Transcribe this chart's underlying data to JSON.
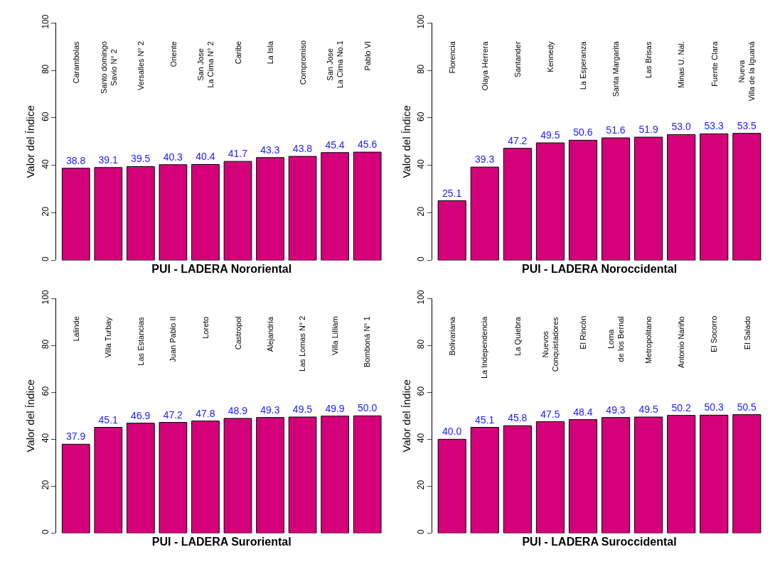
{
  "chart_data": [
    {
      "type": "bar",
      "xlabel": "PUI - LADERA Nororiental",
      "ylabel": "Valor del Índice",
      "categories": [
        "Carambolas",
        "Santo domingo\nSavio N° 2",
        "Versalles N° 2",
        "Oriente",
        "San Jose\nLa Cima N° 2",
        "Caribe",
        "La Isla",
        "Compromiso",
        "San Jose\nLa Cima No.1",
        "Pablo VI"
      ],
      "values": [
        38.8,
        39.1,
        39.5,
        40.3,
        40.4,
        41.7,
        43.3,
        43.8,
        45.4,
        45.6
      ],
      "value_labels": [
        "38.8",
        "39.1",
        "39.5",
        "40.3",
        "40.4",
        "41.7",
        "43.3",
        "43.8",
        "45.4",
        "45.6"
      ],
      "color": "#d4007a",
      "ylim": [
        0,
        100
      ],
      "yticks": [
        0,
        20,
        40,
        60,
        80,
        100
      ]
    },
    {
      "type": "bar",
      "xlabel": "PUI - LADERA Noroccidental",
      "ylabel": "Valor del Índice",
      "categories": [
        "Florencia",
        "Olaya Herrera",
        "Santander",
        "Kennedy",
        "La Esperanza",
        "Santa Margarita",
        "Las Brisas",
        "Minas U. Nal.",
        "Fuente Clara",
        "Nueva\nVilla de la Iguaná"
      ],
      "values": [
        25.1,
        39.3,
        47.2,
        49.5,
        50.6,
        51.6,
        51.9,
        53.0,
        53.3,
        53.5
      ],
      "value_labels": [
        "25.1",
        "39.3",
        "47.2",
        "49.5",
        "50.6",
        "51.6",
        "51.9",
        "53.0",
        "53.3",
        "53.5"
      ],
      "color": "#d4007a",
      "ylim": [
        0,
        100
      ],
      "yticks": [
        0,
        20,
        40,
        60,
        80,
        100
      ]
    },
    {
      "type": "bar",
      "xlabel": "PUI - LADERA Suroriental",
      "ylabel": "Valor del Índice",
      "categories": [
        "Lalinde",
        "Villa Turbay",
        "Las Estancias",
        "Juan Pablo II",
        "Loreto",
        "Castropol",
        "Alejandría",
        "Las Lomas N° 2",
        "Villa Lilliam",
        "Bomboná N° 1"
      ],
      "values": [
        37.9,
        45.1,
        46.9,
        47.2,
        47.8,
        48.9,
        49.3,
        49.5,
        49.9,
        50.0
      ],
      "value_labels": [
        "37.9",
        "45.1",
        "46.9",
        "47.2",
        "47.8",
        "48.9",
        "49.3",
        "49.5",
        "49.9",
        "50.0"
      ],
      "color": "#d4007a",
      "ylim": [
        0,
        100
      ],
      "yticks": [
        0,
        20,
        40,
        60,
        80,
        100
      ]
    },
    {
      "type": "bar",
      "xlabel": "PUI - LADERA Suroccidental",
      "ylabel": "Valor del Índice",
      "categories": [
        "Bolivariana",
        "La Independencia",
        "La Quiebra",
        "Nuevos\nConquistadores",
        "El Rincón",
        "Loma\nde los Bernal",
        "Metropolitano",
        "Antonio Nariño",
        "El Socorro",
        "El Salado"
      ],
      "values": [
        40.0,
        45.1,
        45.8,
        47.5,
        48.4,
        49.3,
        49.5,
        50.2,
        50.3,
        50.5
      ],
      "value_labels": [
        "40.0",
        "45.1",
        "45.8",
        "47.5",
        "48.4",
        "49.3",
        "49.5",
        "50.2",
        "50.3",
        "50.5"
      ],
      "color": "#d4007a",
      "ylim": [
        0,
        100
      ],
      "yticks": [
        0,
        20,
        40,
        60,
        80,
        100
      ]
    }
  ]
}
